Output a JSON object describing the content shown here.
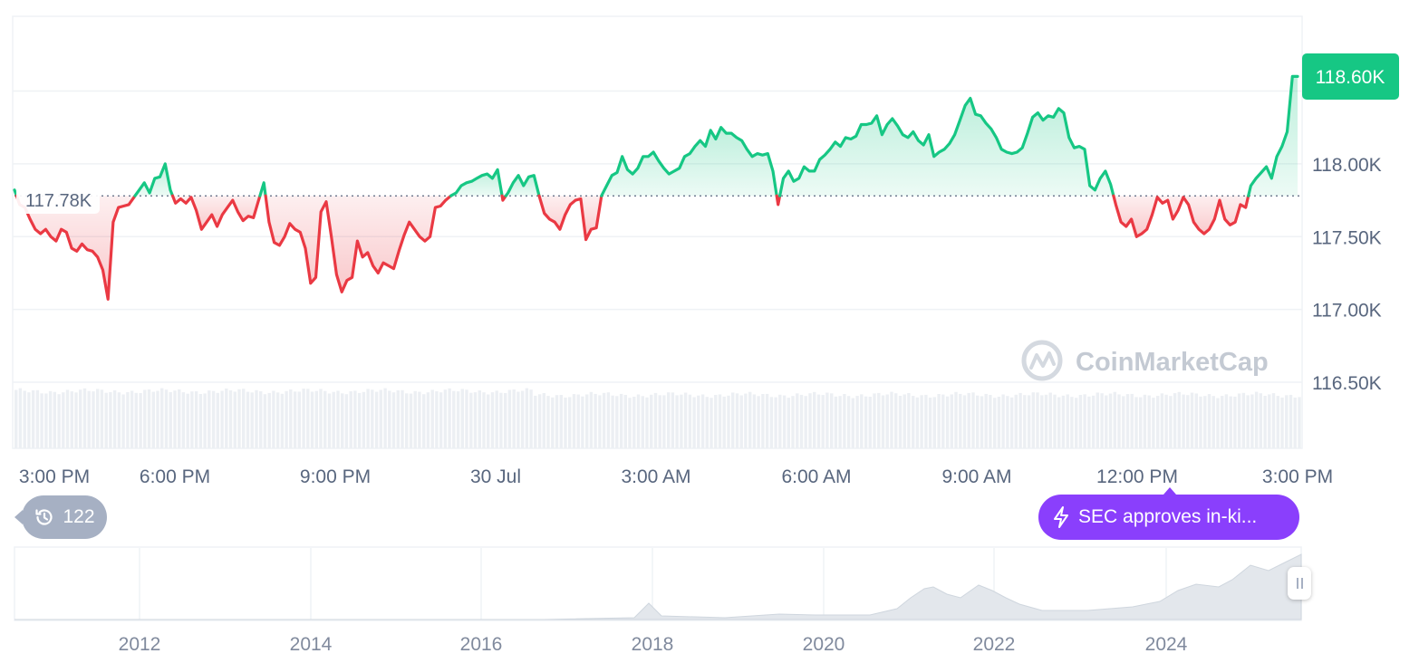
{
  "chart_data": {
    "type": "line",
    "baseline": {
      "value": 117.78,
      "label": "117.78K"
    },
    "last": {
      "value": 118.6,
      "label": "118.60K"
    },
    "ylim": [
      116.5,
      118.5
    ],
    "y_ticks": [
      "118.00K",
      "117.50K",
      "117.00K",
      "116.50K"
    ],
    "x_ticks": [
      "3:00 PM",
      "6:00 PM",
      "9:00 PM",
      "30 Jul",
      "3:00 AM",
      "6:00 AM",
      "9:00 AM",
      "12:00 PM",
      "3:00 PM"
    ],
    "up_color": "#16c784",
    "down_color": "#ea3943",
    "price_series": [
      117.82,
      117.72,
      117.7,
      117.62,
      117.55,
      117.52,
      117.55,
      117.5,
      117.47,
      117.55,
      117.53,
      117.42,
      117.4,
      117.45,
      117.41,
      117.4,
      117.36,
      117.27,
      117.07,
      117.6,
      117.7,
      117.71,
      117.72,
      117.77,
      117.82,
      117.87,
      117.8,
      117.9,
      117.91,
      118.0,
      117.82,
      117.73,
      117.76,
      117.73,
      117.77,
      117.68,
      117.55,
      117.6,
      117.65,
      117.57,
      117.65,
      117.7,
      117.75,
      117.67,
      117.61,
      117.64,
      117.63,
      117.75,
      117.87,
      117.6,
      117.46,
      117.44,
      117.5,
      117.59,
      117.55,
      117.53,
      117.42,
      117.18,
      117.22,
      117.67,
      117.74,
      117.5,
      117.24,
      117.12,
      117.2,
      117.22,
      117.47,
      117.36,
      117.39,
      117.3,
      117.25,
      117.32,
      117.3,
      117.28,
      117.4,
      117.51,
      117.6,
      117.55,
      117.5,
      117.47,
      117.5,
      117.7,
      117.71,
      117.75,
      117.78,
      117.8,
      117.85,
      117.87,
      117.88,
      117.9,
      117.92,
      117.93,
      117.9,
      117.96,
      117.75,
      117.8,
      117.87,
      117.92,
      117.85,
      117.91,
      117.92,
      117.78,
      117.66,
      117.62,
      117.6,
      117.55,
      117.65,
      117.72,
      117.75,
      117.76,
      117.48,
      117.55,
      117.56,
      117.78,
      117.85,
      117.92,
      117.94,
      118.05,
      117.96,
      117.93,
      117.97,
      118.05,
      118.05,
      118.08,
      118.02,
      117.97,
      117.93,
      117.95,
      117.97,
      118.05,
      118.07,
      118.12,
      118.16,
      118.12,
      118.23,
      118.17,
      118.25,
      118.21,
      118.21,
      118.18,
      118.16,
      118.1,
      118.05,
      118.07,
      118.06,
      118.07,
      117.95,
      117.72,
      117.9,
      117.95,
      117.88,
      117.9,
      117.98,
      117.95,
      117.95,
      118.03,
      118.06,
      118.1,
      118.15,
      118.12,
      118.18,
      118.17,
      118.19,
      118.27,
      118.27,
      118.28,
      118.33,
      118.2,
      118.27,
      118.31,
      118.26,
      118.2,
      118.18,
      118.22,
      118.16,
      118.13,
      118.2,
      118.05,
      118.08,
      118.1,
      118.14,
      118.2,
      118.3,
      118.4,
      118.45,
      118.34,
      118.33,
      118.28,
      118.24,
      118.18,
      118.1,
      118.08,
      118.07,
      118.08,
      118.11,
      118.21,
      118.32,
      118.35,
      118.3,
      118.33,
      118.32,
      118.38,
      118.35,
      118.18,
      118.11,
      118.12,
      118.1,
      117.85,
      117.82,
      117.9,
      117.95,
      117.86,
      117.72,
      117.6,
      117.57,
      117.62,
      117.5,
      117.52,
      117.55,
      117.65,
      117.77,
      117.73,
      117.75,
      117.62,
      117.68,
      117.77,
      117.72,
      117.6,
      117.55,
      117.52,
      117.55,
      117.62,
      117.75,
      117.62,
      117.58,
      117.6,
      117.72,
      117.7,
      117.85,
      117.9,
      117.94,
      117.98,
      117.9,
      118.05,
      118.12,
      118.22,
      118.6,
      118.6
    ],
    "overview": {
      "x_ticks": [
        "2012",
        "2014",
        "2016",
        "2018",
        "2020",
        "2022",
        "2024"
      ]
    }
  },
  "badges": {
    "history": {
      "count": "122",
      "icon": "history-icon"
    },
    "news": {
      "text": "SEC approves in-ki...",
      "icon": "lightning-icon",
      "color": "#8a3ffc"
    }
  },
  "watermark": "CoinMarketCap"
}
